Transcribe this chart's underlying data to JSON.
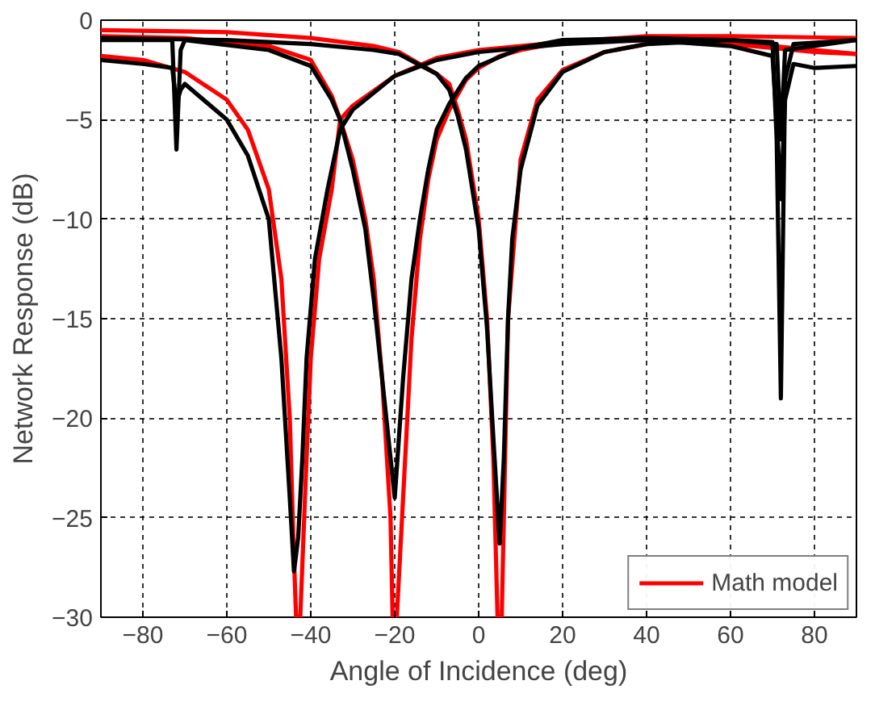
{
  "chart_data": {
    "type": "line",
    "xlabel": "Angle of Incidence (deg)",
    "ylabel": "Network Response (dB)",
    "xlim": [
      -90,
      90
    ],
    "ylim": [
      -30,
      0
    ],
    "xticks": [
      -80,
      -60,
      -40,
      -20,
      0,
      20,
      40,
      60,
      80
    ],
    "yticks": [
      -30,
      -25,
      -20,
      -15,
      -10,
      -5,
      0
    ],
    "grid": true,
    "legend": "bottom right",
    "line_style": "solid",
    "marker": "none",
    "series": [
      {
        "name": "Math model",
        "color": "#ff0000",
        "x": [
          -90,
          -80,
          -70,
          -60,
          -55,
          -50,
          -47,
          -45,
          -44,
          -43.5,
          -42.5,
          -41,
          -40,
          -38,
          -35,
          -33,
          -30,
          -20,
          -10,
          0,
          20,
          40,
          60,
          70,
          80,
          90
        ],
        "values": [
          -1.8,
          -2.0,
          -2.6,
          -4.0,
          -5.5,
          -8.5,
          -13,
          -20,
          -27,
          -30,
          -30,
          -22,
          -17,
          -12,
          -8.5,
          -5,
          -4.3,
          -2.8,
          -1.9,
          -1.5,
          -1.1,
          -1.0,
          -1.2,
          -1.4,
          -1.6,
          -1.7
        ]
      },
      {
        "color": "#ff0000",
        "x": [
          -90,
          -70,
          -50,
          -40,
          -35,
          -33,
          -30,
          -27,
          -25,
          -23,
          -21,
          -20.5,
          -19.5,
          -18,
          -16,
          -14,
          -12,
          -10,
          -7,
          -3,
          0,
          5,
          10,
          20,
          40,
          60,
          90
        ],
        "values": [
          -0.8,
          -0.9,
          -1.3,
          -2.0,
          -3.8,
          -5,
          -7,
          -10,
          -13,
          -18,
          -25,
          -30,
          -30,
          -24,
          -16,
          -11,
          -8,
          -6,
          -4.5,
          -3,
          -2.4,
          -1.8,
          -1.5,
          -1.1,
          -0.8,
          -0.8,
          -0.9
        ]
      },
      {
        "color": "#ff0000",
        "x": [
          -90,
          -60,
          -40,
          -25,
          -19,
          -10,
          -7,
          -5,
          -3,
          0,
          2,
          3.5,
          4.5,
          5.5,
          7,
          10,
          14,
          20,
          30,
          40,
          50,
          60,
          70,
          90
        ],
        "values": [
          -0.5,
          -0.6,
          -0.9,
          -1.3,
          -1.6,
          -2.7,
          -3.2,
          -4.5,
          -6,
          -10,
          -15,
          -22,
          -30,
          -30,
          -15,
          -7,
          -4,
          -2.5,
          -1.6,
          -1.2,
          -1.0,
          -1.1,
          -1.3,
          -1.7
        ]
      },
      {
        "color": "#000000",
        "x": [
          -90,
          -80,
          -73,
          -72,
          -71,
          -70,
          -60,
          -55,
          -50,
          -47,
          -45,
          -44,
          -43,
          -42,
          -41,
          -39,
          -36,
          -33,
          -30,
          -20,
          -10,
          0,
          20,
          40,
          60,
          70,
          71,
          72,
          73,
          75,
          80,
          90
        ],
        "values": [
          -2.0,
          -2.2,
          -2.4,
          -4.2,
          -3.5,
          -3.2,
          -5,
          -6.8,
          -10,
          -17,
          -24,
          -27.7,
          -26,
          -22,
          -17,
          -12,
          -8.5,
          -5.5,
          -4.5,
          -2.8,
          -2,
          -1.6,
          -1.2,
          -1.0,
          -1.3,
          -1.8,
          -5,
          -9,
          -4,
          -2.2,
          -2.4,
          -2.3
        ]
      },
      {
        "color": "#000000",
        "x": [
          -90,
          -73,
          -72,
          -71,
          -70,
          -50,
          -40,
          -35,
          -33,
          -30,
          -27,
          -25,
          -23,
          -21,
          -20,
          -19,
          -18,
          -16,
          -14,
          -12,
          -10,
          -7,
          -3,
          0,
          10,
          20,
          40,
          60,
          70,
          71,
          72,
          73,
          75,
          90
        ],
        "values": [
          -1.0,
          -1.0,
          -6.5,
          -1.5,
          -1.0,
          -1.5,
          -2.3,
          -4,
          -5,
          -7.5,
          -10.5,
          -14,
          -18,
          -22,
          -24,
          -21,
          -18,
          -13,
          -10,
          -7.5,
          -5.5,
          -4.2,
          -2.9,
          -2.3,
          -1.4,
          -1.0,
          -0.9,
          -1.0,
          -1.1,
          -6,
          -19,
          -3,
          -1.2,
          -1.0
        ]
      },
      {
        "color": "#000000",
        "x": [
          -90,
          -60,
          -40,
          -25,
          -19,
          -10,
          -7,
          -5,
          -3,
          0,
          2,
          3.5,
          5,
          6,
          7,
          8,
          10,
          14,
          20,
          30,
          40,
          60,
          71,
          72,
          73,
          90
        ],
        "values": [
          -0.9,
          -1.0,
          -1.2,
          -1.5,
          -1.7,
          -2.7,
          -3.5,
          -4.8,
          -6.5,
          -10.5,
          -15.5,
          -21,
          -26.3,
          -22,
          -15,
          -11,
          -7.5,
          -4.3,
          -2.6,
          -1.6,
          -1.2,
          -1.0,
          -1.2,
          -6,
          -1.5,
          -1.0
        ]
      }
    ]
  }
}
